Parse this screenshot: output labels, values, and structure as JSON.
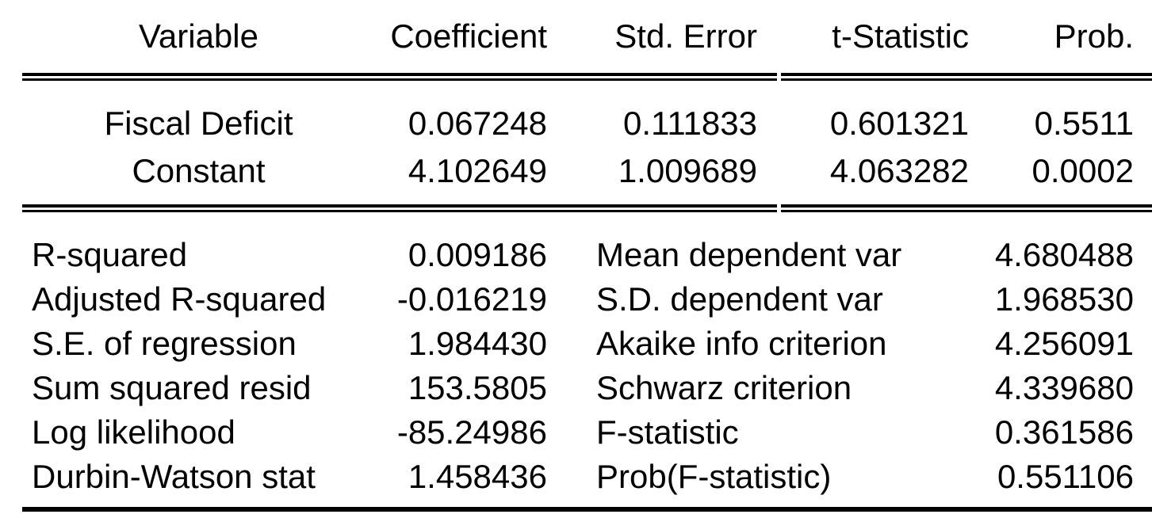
{
  "table": {
    "columns": [
      "Variable",
      "Coefficient",
      "Std. Error",
      "t-Statistic",
      "Prob."
    ],
    "rows": [
      {
        "variable": "Fiscal Deficit",
        "coefficient": "0.067248",
        "std_error": "0.111833",
        "t_statistic": "0.601321",
        "prob": "0.5511"
      },
      {
        "variable": "Constant",
        "coefficient": "4.102649",
        "std_error": "1.009689",
        "t_statistic": "4.063282",
        "prob": "0.0002"
      }
    ],
    "summary": {
      "left": [
        {
          "label": "R-squared",
          "value": "0.009186"
        },
        {
          "label": "Adjusted R-squared",
          "value": "-0.016219"
        },
        {
          "label": "S.E. of regression",
          "value": "1.984430"
        },
        {
          "label": "Sum squared resid",
          "value": "153.5805"
        },
        {
          "label": "Log likelihood",
          "value": "-85.24986"
        },
        {
          "label": "Durbin-Watson stat",
          "value": "1.458436"
        }
      ],
      "right": [
        {
          "label": "Mean dependent var",
          "value": "4.680488"
        },
        {
          "label": "S.D. dependent var",
          "value": "1.968530"
        },
        {
          "label": "Akaike info criterion",
          "value": "4.256091"
        },
        {
          "label": "Schwarz criterion",
          "value": "4.339680"
        },
        {
          "label": "F-statistic",
          "value": "0.361586"
        },
        {
          "label": "Prob(F-statistic)",
          "value": "0.551106"
        }
      ]
    },
    "colors": {
      "text": "#000000",
      "background": "#ffffff",
      "rule": "#000000"
    }
  }
}
